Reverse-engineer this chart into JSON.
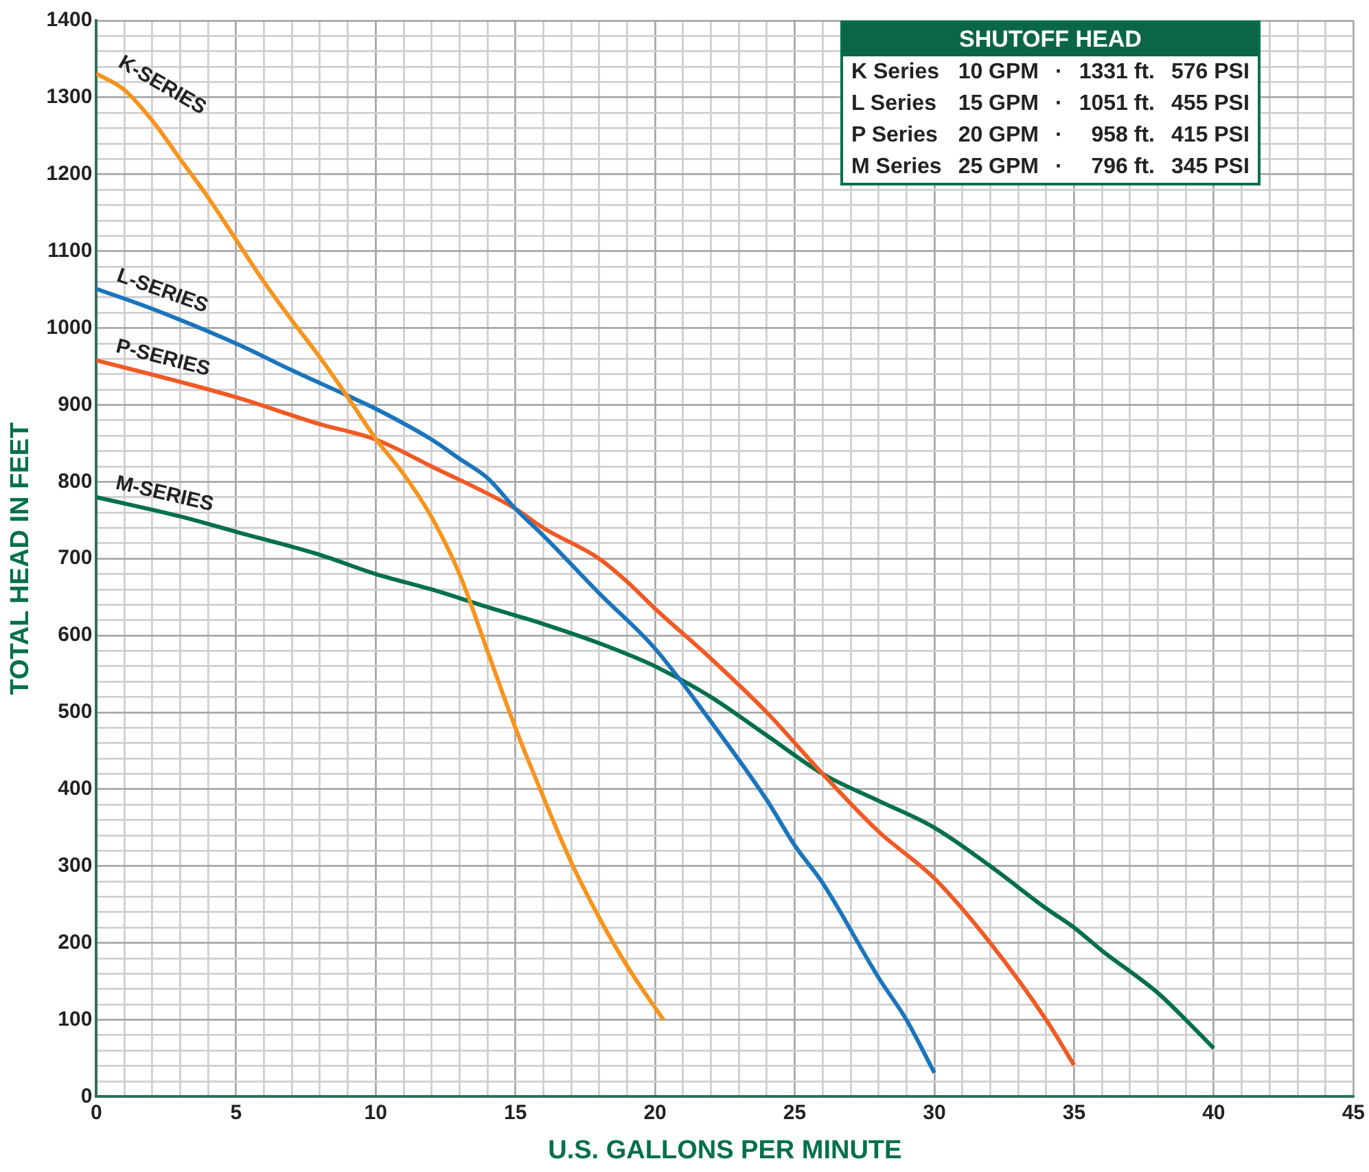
{
  "chart_data": {
    "type": "line",
    "xlabel": "U.S. GALLONS PER MINUTE",
    "ylabel": "TOTAL HEAD IN FEET",
    "xlim": [
      0,
      45
    ],
    "ylim": [
      0,
      1400
    ],
    "xticks": [
      0,
      {
        "value": 1,
        "label": null
      },
      {
        "value": 2,
        "label": null
      },
      {
        "value": 3,
        "label": null
      },
      {
        "value": 4,
        "label": null
      },
      5,
      {
        "value": 6,
        "label": null
      },
      {
        "value": 7,
        "label": null
      },
      {
        "value": 8,
        "label": null
      },
      {
        "value": 9,
        "label": null
      },
      10,
      {
        "value": 11,
        "label": null
      },
      {
        "value": 12,
        "label": null
      },
      {
        "value": 13,
        "label": null
      },
      {
        "value": 14,
        "label": null
      },
      15,
      {
        "value": 16,
        "label": null
      },
      {
        "value": 17,
        "label": null
      },
      {
        "value": 18,
        "label": null
      },
      {
        "value": 19,
        "label": null
      },
      20,
      {
        "value": 21,
        "label": null
      },
      {
        "value": 22,
        "label": null
      },
      {
        "value": 23,
        "label": null
      },
      {
        "value": 24,
        "label": null
      },
      25,
      {
        "value": 26,
        "label": null
      },
      {
        "value": 27,
        "label": null
      },
      {
        "value": 28,
        "label": null
      },
      {
        "value": 29,
        "label": null
      },
      30,
      {
        "value": 31,
        "label": null
      },
      {
        "value": 32,
        "label": null
      },
      {
        "value": 33,
        "label": null
      },
      {
        "value": 34,
        "label": null
      },
      35,
      {
        "value": 36,
        "label": null
      },
      {
        "value": 37,
        "label": null
      },
      {
        "value": 38,
        "label": null
      },
      {
        "value": 39,
        "label": null
      },
      40,
      {
        "value": 41,
        "label": null
      },
      {
        "value": 42,
        "label": null
      },
      {
        "value": 43,
        "label": null
      },
      {
        "value": 44,
        "label": null
      },
      45
    ],
    "yticks": [
      0,
      {
        "value": 20,
        "label": null
      },
      {
        "value": 40,
        "label": null
      },
      {
        "value": 60,
        "label": null
      },
      {
        "value": 80,
        "label": null
      },
      100,
      {
        "value": 120,
        "label": null
      },
      {
        "value": 140,
        "label": null
      },
      {
        "value": 160,
        "label": null
      },
      {
        "value": 180,
        "label": null
      },
      200,
      {
        "value": 220,
        "label": null
      },
      {
        "value": 240,
        "label": null
      },
      {
        "value": 260,
        "label": null
      },
      {
        "value": 280,
        "label": null
      },
      300,
      {
        "value": 320,
        "label": null
      },
      {
        "value": 340,
        "label": null
      },
      {
        "value": 360,
        "label": null
      },
      {
        "value": 380,
        "label": null
      },
      400,
      {
        "value": 420,
        "label": null
      },
      {
        "value": 440,
        "label": null
      },
      {
        "value": 460,
        "label": null
      },
      {
        "value": 480,
        "label": null
      },
      500,
      {
        "value": 520,
        "label": null
      },
      {
        "value": 540,
        "label": null
      },
      {
        "value": 560,
        "label": null
      },
      {
        "value": 580,
        "label": null
      },
      600,
      {
        "value": 620,
        "label": null
      },
      {
        "value": 640,
        "label": null
      },
      {
        "value": 660,
        "label": null
      },
      {
        "value": 680,
        "label": null
      },
      700,
      {
        "value": 720,
        "label": null
      },
      {
        "value": 740,
        "label": null
      },
      {
        "value": 760,
        "label": null
      },
      {
        "value": 780,
        "label": null
      },
      800,
      {
        "value": 820,
        "label": null
      },
      {
        "value": 840,
        "label": null
      },
      {
        "value": 860,
        "label": null
      },
      {
        "value": 880,
        "label": null
      },
      900,
      {
        "value": 920,
        "label": null
      },
      {
        "value": 940,
        "label": null
      },
      {
        "value": 960,
        "label": null
      },
      {
        "value": 980,
        "label": null
      },
      1000,
      {
        "value": 1020,
        "label": null
      },
      {
        "value": 1040,
        "label": null
      },
      {
        "value": 1060,
        "label": null
      },
      {
        "value": 1080,
        "label": null
      },
      1100,
      {
        "value": 1120,
        "label": null
      },
      {
        "value": 1140,
        "label": null
      },
      {
        "value": 1160,
        "label": null
      },
      {
        "value": 1180,
        "label": null
      },
      1200,
      {
        "value": 1220,
        "label": null
      },
      {
        "value": 1240,
        "label": null
      },
      {
        "value": 1260,
        "label": null
      },
      {
        "value": 1280,
        "label": null
      },
      1300,
      {
        "value": 1320,
        "label": null
      },
      {
        "value": 1340,
        "label": null
      },
      {
        "value": 1360,
        "label": null
      },
      {
        "value": 1380,
        "label": null
      },
      1400
    ],
    "grid": true,
    "legend": false,
    "marker": "none",
    "line_style": "solid",
    "series": [
      {
        "name": "K-SERIES",
        "color": "#f7941d",
        "x": [
          0,
          1,
          2,
          3,
          4,
          5,
          6,
          7,
          8,
          9,
          10,
          11,
          12,
          13,
          14,
          15,
          16,
          17,
          18,
          19,
          20.3
        ],
        "values": [
          1331,
          1310,
          1270,
          1220,
          1170,
          1115,
          1060,
          1010,
          962,
          910,
          856,
          810,
          754,
          680,
          580,
          480,
          390,
          305,
          233,
          170,
          100
        ]
      },
      {
        "name": "L-SERIES",
        "color": "#1b75bc",
        "x": [
          0,
          2,
          5,
          7,
          9,
          10,
          12,
          13,
          14,
          15,
          16,
          18,
          20,
          22,
          24,
          25,
          26,
          28,
          29,
          30
        ],
        "values": [
          1051,
          1025,
          980,
          945,
          912,
          895,
          855,
          830,
          805,
          765,
          730,
          655,
          583,
          488,
          386,
          327,
          278,
          155,
          100,
          31
        ]
      },
      {
        "name": "P-SERIES",
        "color": "#f15a24",
        "x": [
          0,
          3,
          5,
          8,
          10,
          12,
          15,
          16,
          18,
          19,
          20,
          22,
          24,
          26,
          28,
          30,
          32,
          34,
          35
        ],
        "values": [
          958,
          930,
          910,
          875,
          855,
          820,
          765,
          740,
          700,
          670,
          635,
          570,
          500,
          420,
          345,
          284,
          200,
          100,
          41
        ]
      },
      {
        "name": "M-SERIES",
        "color": "#00704a",
        "x": [
          0,
          3,
          5,
          8,
          10,
          12,
          14,
          16,
          18,
          20,
          22,
          24,
          26,
          28,
          30,
          32,
          34,
          35,
          36,
          38,
          39,
          40
        ],
        "values": [
          780,
          755,
          735,
          705,
          680,
          660,
          637,
          615,
          590,
          560,
          520,
          470,
          420,
          385,
          350,
          300,
          245,
          220,
          190,
          135,
          100,
          63
        ]
      }
    ],
    "annotations": [
      "SHUTOFF HEAD",
      "K Series  10 GPM  ·  1331 ft.  576 PSI",
      "L Series  15 GPM  ·  1051 ft.  455 PSI",
      "P Series  20 GPM  ·  958 ft.  415 PSI",
      "M Series  25 GPM  ·  796 ft.  345 PSI"
    ]
  }
}
